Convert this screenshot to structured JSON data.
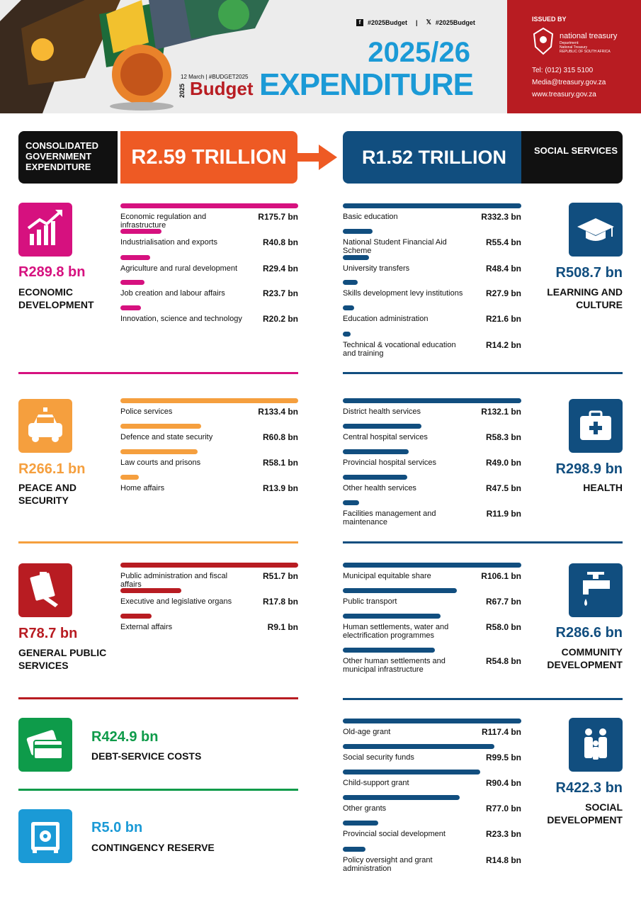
{
  "header": {
    "social_fb": "#2025Budget",
    "social_x": "#2025Budget",
    "date": "12 March",
    "hashtag": "#BUDGET2025",
    "brand_year": "2025",
    "brand": "Budget",
    "title_year": "2025/26",
    "title": "EXPENDITURE",
    "issued_by": "ISSUED BY",
    "org": "national treasury",
    "dept_1": "Department:",
    "dept_2": "National Treasury",
    "dept_3": "REPUBLIC OF SOUTH AFRICA",
    "tel": "Tel: (012) 315 5100",
    "email": "Media@treasury.gov.za",
    "web": "www.treasury.gov.za"
  },
  "totals": {
    "consolidated_label": "CONSOLIDATED GOVERNMENT EXPENDITURE",
    "consolidated_value": "R2.59 TRILLION",
    "social_value": "R1.52 TRILLION",
    "social_label": "SOCIAL SERVICES"
  },
  "colors": {
    "economic": "#d6117f",
    "peace": "#f59f3e",
    "general": "#b81c22",
    "debt": "#0e9b4a",
    "contingency": "#1b9ad6",
    "social": "#114e7f",
    "orange": "#ee5a24"
  },
  "chart_data": [
    {
      "type": "bar",
      "group": "left",
      "title": "ECONOMIC DEVELOPMENT",
      "total": "R289.8 bn",
      "icon": "growth-chart-icon",
      "color": "#d6117f",
      "categories": [
        "Economic regulation and infrastructure",
        "Industrialisation and exports",
        "Agriculture and rural development",
        "Job creation and labour affairs",
        "Innovation, science and technology"
      ],
      "values": [
        175.7,
        40.8,
        29.4,
        23.7,
        20.2
      ],
      "labels": [
        "R175.7 bn",
        "R40.8 bn",
        "R29.4 bn",
        "R23.7 bn",
        "R20.2 bn"
      ]
    },
    {
      "type": "bar",
      "group": "left",
      "title": "PEACE AND SECURITY",
      "total": "R266.1 bn",
      "icon": "police-car-icon",
      "color": "#f59f3e",
      "categories": [
        "Police services",
        "Defence and state security",
        "Law courts and prisons",
        "Home affairs"
      ],
      "values": [
        133.4,
        60.8,
        58.1,
        13.9
      ],
      "labels": [
        "R133.4 bn",
        "R60.8 bn",
        "R58.1 bn",
        "R13.9 bn"
      ]
    },
    {
      "type": "bar",
      "group": "left",
      "title": "GENERAL PUBLIC SERVICES",
      "total": "R78.7 bn",
      "icon": "signing-document-icon",
      "color": "#b81c22",
      "categories": [
        "Public administration and fiscal affairs",
        "Executive and legislative organs",
        "External affairs"
      ],
      "values": [
        51.7,
        17.8,
        9.1
      ],
      "labels": [
        "R51.7 bn",
        "R17.8 bn",
        "R9.1 bn"
      ]
    },
    {
      "type": "bar",
      "group": "right",
      "title": "LEARNING AND CULTURE",
      "total": "R508.7 bn",
      "icon": "graduation-cap-icon",
      "color": "#114e7f",
      "categories": [
        "Basic education",
        "National Student Financial Aid Scheme",
        "University transfers",
        "Skills development levy institutions",
        "Education administration",
        "Technical & vocational education and training"
      ],
      "values": [
        332.3,
        55.4,
        48.4,
        27.9,
        21.6,
        14.2
      ],
      "labels": [
        "R332.3 bn",
        "R55.4 bn",
        "R48.4 bn",
        "R27.9 bn",
        "R21.6 bn",
        "R14.2 bn"
      ]
    },
    {
      "type": "bar",
      "group": "right",
      "title": "HEALTH",
      "total": "R298.9 bn",
      "icon": "first-aid-kit-icon",
      "color": "#114e7f",
      "categories": [
        "District health services",
        "Central hospital services",
        "Provincial hospital services",
        "Other health services",
        "Facilities management and maintenance"
      ],
      "values": [
        132.1,
        58.3,
        49.0,
        47.5,
        11.9
      ],
      "labels": [
        "R132.1 bn",
        "R58.3 bn",
        "R49.0 bn",
        "R47.5 bn",
        "R11.9 bn"
      ]
    },
    {
      "type": "bar",
      "group": "right",
      "title": "COMMUNITY DEVELOPMENT",
      "total": "R286.6 bn",
      "icon": "water-tap-icon",
      "color": "#114e7f",
      "categories": [
        "Municipal equitable share",
        "Public transport",
        "Human settlements, water and electrification programmes",
        "Other human settlements and municipal infrastructure"
      ],
      "values": [
        106.1,
        67.7,
        58.0,
        54.8
      ],
      "labels": [
        "R106.1 bn",
        "R67.7 bn",
        "R58.0 bn",
        "R54.8 bn"
      ]
    },
    {
      "type": "bar",
      "group": "right",
      "title": "SOCIAL DEVELOPMENT",
      "total": "R422.3 bn",
      "icon": "family-icon",
      "color": "#114e7f",
      "categories": [
        "Old-age grant",
        "Social security funds",
        "Child-support grant",
        "Other grants",
        "Provincial social development",
        "Policy oversight and grant administration"
      ],
      "values": [
        117.4,
        99.5,
        90.4,
        77.0,
        23.3,
        14.8
      ],
      "labels": [
        "R117.4 bn",
        "R99.5 bn",
        "R90.4 bn",
        "R77.0 bn",
        "R23.3 bn",
        "R14.8 bn"
      ]
    }
  ],
  "debt": {
    "total": "R424.9 bn",
    "title": "DEBT-SERVICE COSTS",
    "icon": "credit-card-icon"
  },
  "contingency": {
    "total": "R5.0 bn",
    "title": "CONTINGENCY RESERVE",
    "icon": "safe-icon"
  }
}
